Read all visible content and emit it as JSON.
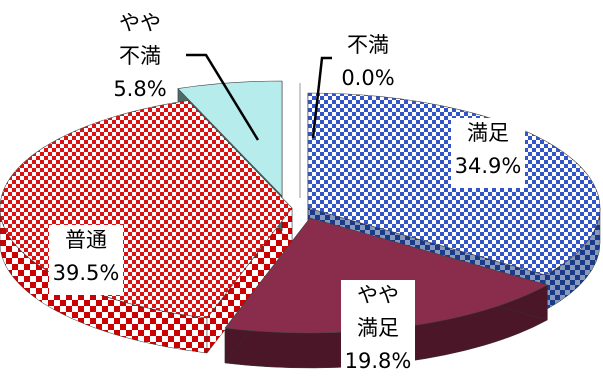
{
  "chart_data": {
    "type": "pie",
    "style": "3d-exploded",
    "slices": [
      {
        "id": "manzoku",
        "name": "満足",
        "value": 34.9,
        "label": "34.9%",
        "color": "#3355cc",
        "pattern": "checker",
        "pattern_color": "#ffffff"
      },
      {
        "id": "yaya-manzoku",
        "name": "やや満足",
        "name_lines": [
          "やや",
          "満足"
        ],
        "value": 19.8,
        "label": "19.8%",
        "color": "#8a2c4c",
        "pattern": "solid"
      },
      {
        "id": "futsu",
        "name": "普通",
        "value": 39.5,
        "label": "39.5%",
        "color": "#dd1111",
        "pattern": "checker",
        "pattern_color": "#ffffff"
      },
      {
        "id": "yaya-fuman",
        "name": "やや不満",
        "name_lines": [
          "やや",
          "不満"
        ],
        "value": 5.8,
        "label": "5.8%",
        "color": "#b7ecec",
        "pattern": "solid"
      },
      {
        "id": "fuman",
        "name": "不満",
        "value": 0.0,
        "label": "0.0%",
        "color": "#ffffff",
        "pattern": "solid"
      }
    ]
  }
}
